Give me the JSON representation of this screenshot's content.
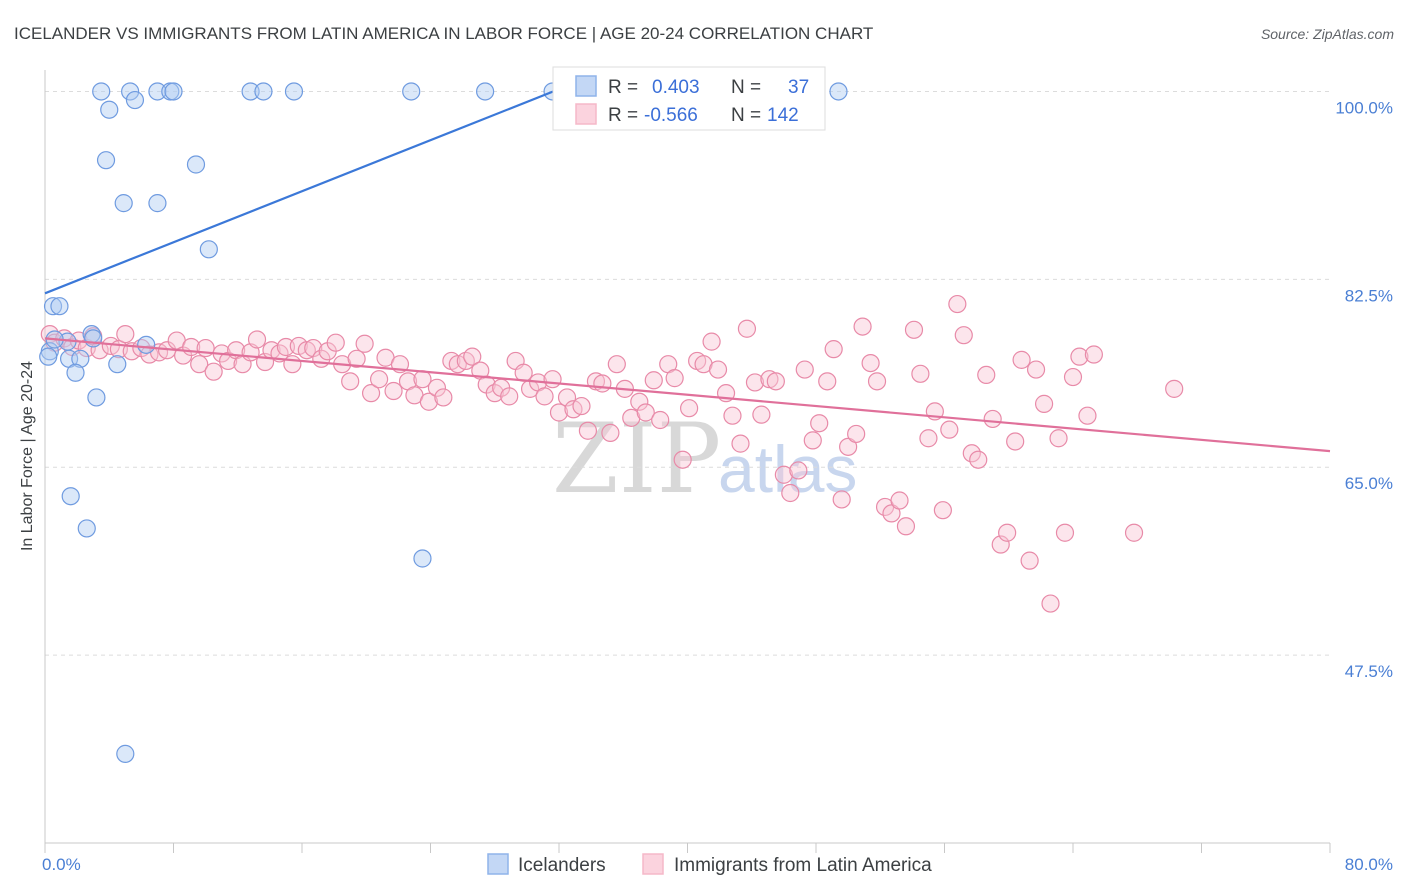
{
  "title": "ICELANDER VS IMMIGRANTS FROM LATIN AMERICA IN LABOR FORCE | AGE 20-24 CORRELATION CHART",
  "source": "Source: ZipAtlas.com",
  "watermark": {
    "zip": "ZIP",
    "atlas": "atlas"
  },
  "chart_data": {
    "type": "scatter",
    "title": "ICELANDER VS IMMIGRANTS FROM LATIN AMERICA IN LABOR FORCE | AGE 20-24 CORRELATION CHART",
    "xlabel": "",
    "ylabel": "In Labor Force | Age 20-24",
    "xlim": [
      0,
      80
    ],
    "ylim": [
      30,
      102
    ],
    "x_tick_labels": [
      "0.0%",
      "80.0%"
    ],
    "y_ticks": [
      47.5,
      65.0,
      82.5,
      100.0
    ],
    "y_tick_labels": [
      "47.5%",
      "65.0%",
      "82.5%",
      "100.0%"
    ],
    "grid": true,
    "legend_position": "top-center",
    "series": [
      {
        "name": "Icelanders",
        "color": "#8fb4ea",
        "line_color": "#3b78d8",
        "R": "0.403",
        "N": "37",
        "trend": {
          "x": [
            0,
            35
          ],
          "y": [
            81.2,
            102
          ]
        },
        "points": [
          [
            3.5,
            100
          ],
          [
            5.3,
            100
          ],
          [
            7.0,
            100
          ],
          [
            7.8,
            100
          ],
          [
            8.0,
            100
          ],
          [
            12.8,
            100
          ],
          [
            13.6,
            100
          ],
          [
            15.5,
            100
          ],
          [
            22.8,
            100
          ],
          [
            27.4,
            100
          ],
          [
            31.6,
            100
          ],
          [
            49.4,
            100
          ],
          [
            5.6,
            99.2
          ],
          [
            4.0,
            98.3
          ],
          [
            3.8,
            93.6
          ],
          [
            9.4,
            93.2
          ],
          [
            4.9,
            89.6
          ],
          [
            7.0,
            89.6
          ],
          [
            10.2,
            85.3
          ],
          [
            0.5,
            80.0
          ],
          [
            0.9,
            80.0
          ],
          [
            2.9,
            77.4
          ],
          [
            6.3,
            76.4
          ],
          [
            1.4,
            76.7
          ],
          [
            0.3,
            75.8
          ],
          [
            1.5,
            75.1
          ],
          [
            2.2,
            75.1
          ],
          [
            4.5,
            74.6
          ],
          [
            1.9,
            73.8
          ],
          [
            3.2,
            71.5
          ],
          [
            1.6,
            62.3
          ],
          [
            2.6,
            59.3
          ],
          [
            23.5,
            56.5
          ],
          [
            5.0,
            38.3
          ],
          [
            0.2,
            75.3
          ],
          [
            0.6,
            76.9
          ],
          [
            3.0,
            77.0
          ]
        ]
      },
      {
        "name": "Immigrants from Latin America",
        "color": "#f5b8c8",
        "line_color": "#e0709a",
        "R": "-0.566",
        "N": "142",
        "trend": {
          "x": [
            0,
            80
          ],
          "y": [
            77.0,
            66.5
          ]
        },
        "points": [
          [
            0.3,
            77.4
          ],
          [
            0.6,
            76.6
          ],
          [
            1.2,
            77.0
          ],
          [
            1.7,
            76.2
          ],
          [
            2.1,
            76.8
          ],
          [
            2.6,
            76.1
          ],
          [
            3.0,
            77.2
          ],
          [
            3.4,
            75.9
          ],
          [
            4.1,
            76.3
          ],
          [
            4.6,
            76.0
          ],
          [
            5.0,
            77.4
          ],
          [
            5.4,
            75.8
          ],
          [
            6.0,
            76.1
          ],
          [
            6.5,
            75.5
          ],
          [
            7.1,
            75.7
          ],
          [
            7.6,
            75.9
          ],
          [
            8.2,
            76.8
          ],
          [
            8.6,
            75.4
          ],
          [
            9.1,
            76.2
          ],
          [
            9.6,
            74.6
          ],
          [
            10.0,
            76.1
          ],
          [
            10.5,
            73.9
          ],
          [
            11.0,
            75.6
          ],
          [
            11.4,
            74.9
          ],
          [
            11.9,
            75.9
          ],
          [
            12.3,
            74.6
          ],
          [
            12.8,
            75.7
          ],
          [
            13.2,
            76.9
          ],
          [
            13.7,
            74.8
          ],
          [
            14.1,
            75.9
          ],
          [
            14.6,
            75.6
          ],
          [
            15.0,
            76.2
          ],
          [
            15.4,
            74.6
          ],
          [
            15.8,
            76.3
          ],
          [
            16.3,
            75.9
          ],
          [
            16.7,
            76.1
          ],
          [
            17.2,
            75.1
          ],
          [
            17.6,
            75.8
          ],
          [
            18.1,
            76.6
          ],
          [
            18.5,
            74.6
          ],
          [
            19.0,
            73.0
          ],
          [
            19.4,
            75.1
          ],
          [
            19.9,
            76.5
          ],
          [
            20.3,
            71.9
          ],
          [
            20.8,
            73.2
          ],
          [
            21.2,
            75.2
          ],
          [
            21.7,
            72.1
          ],
          [
            22.1,
            74.6
          ],
          [
            22.6,
            73.0
          ],
          [
            23.0,
            71.7
          ],
          [
            23.5,
            73.2
          ],
          [
            23.9,
            71.1
          ],
          [
            24.4,
            72.4
          ],
          [
            24.8,
            71.5
          ],
          [
            25.3,
            74.9
          ],
          [
            25.7,
            74.6
          ],
          [
            26.2,
            74.9
          ],
          [
            26.6,
            75.3
          ],
          [
            27.1,
            74.0
          ],
          [
            27.5,
            72.7
          ],
          [
            28.0,
            71.9
          ],
          [
            28.4,
            72.4
          ],
          [
            28.9,
            71.6
          ],
          [
            29.3,
            74.9
          ],
          [
            29.8,
            73.8
          ],
          [
            30.2,
            72.3
          ],
          [
            30.7,
            72.9
          ],
          [
            31.1,
            71.6
          ],
          [
            31.6,
            73.2
          ],
          [
            32.0,
            70.1
          ],
          [
            32.5,
            71.5
          ],
          [
            32.9,
            70.4
          ],
          [
            33.4,
            70.7
          ],
          [
            33.8,
            68.4
          ],
          [
            34.3,
            73.0
          ],
          [
            34.7,
            72.8
          ],
          [
            35.2,
            68.2
          ],
          [
            35.6,
            74.6
          ],
          [
            36.1,
            72.3
          ],
          [
            36.5,
            69.6
          ],
          [
            37.0,
            71.1
          ],
          [
            37.4,
            70.1
          ],
          [
            37.9,
            73.1
          ],
          [
            38.3,
            69.4
          ],
          [
            38.8,
            74.6
          ],
          [
            39.2,
            73.3
          ],
          [
            39.7,
            65.7
          ],
          [
            40.1,
            70.5
          ],
          [
            40.6,
            74.9
          ],
          [
            41.0,
            74.6
          ],
          [
            41.5,
            76.7
          ],
          [
            41.9,
            74.1
          ],
          [
            42.4,
            71.9
          ],
          [
            42.8,
            69.8
          ],
          [
            43.3,
            67.2
          ],
          [
            43.7,
            77.9
          ],
          [
            44.2,
            72.9
          ],
          [
            44.6,
            69.9
          ],
          [
            45.1,
            73.2
          ],
          [
            45.5,
            73.0
          ],
          [
            46.0,
            64.3
          ],
          [
            46.4,
            62.6
          ],
          [
            46.9,
            64.7
          ],
          [
            47.3,
            74.1
          ],
          [
            47.8,
            67.5
          ],
          [
            48.2,
            69.1
          ],
          [
            48.7,
            73.0
          ],
          [
            49.1,
            76.0
          ],
          [
            49.6,
            62.0
          ],
          [
            50.0,
            66.9
          ],
          [
            50.5,
            68.1
          ],
          [
            50.9,
            78.1
          ],
          [
            51.4,
            74.7
          ],
          [
            51.8,
            73.0
          ],
          [
            52.3,
            61.3
          ],
          [
            52.7,
            60.7
          ],
          [
            53.2,
            61.9
          ],
          [
            53.6,
            59.5
          ],
          [
            54.1,
            77.8
          ],
          [
            54.5,
            73.7
          ],
          [
            55.0,
            67.7
          ],
          [
            55.4,
            70.2
          ],
          [
            55.9,
            61.0
          ],
          [
            56.3,
            68.5
          ],
          [
            56.8,
            80.2
          ],
          [
            57.2,
            77.3
          ],
          [
            57.7,
            66.3
          ],
          [
            58.1,
            65.7
          ],
          [
            58.6,
            73.6
          ],
          [
            59.0,
            69.5
          ],
          [
            59.5,
            57.8
          ],
          [
            59.9,
            58.9
          ],
          [
            60.4,
            67.4
          ],
          [
            60.8,
            75.0
          ],
          [
            61.3,
            56.3
          ],
          [
            61.7,
            74.1
          ],
          [
            62.2,
            70.9
          ],
          [
            62.6,
            52.3
          ],
          [
            63.1,
            67.7
          ],
          [
            63.5,
            58.9
          ],
          [
            64.0,
            73.4
          ],
          [
            64.4,
            75.3
          ],
          [
            64.9,
            69.8
          ],
          [
            65.3,
            75.5
          ],
          [
            67.8,
            58.9
          ],
          [
            70.3,
            72.3
          ]
        ]
      }
    ]
  }
}
